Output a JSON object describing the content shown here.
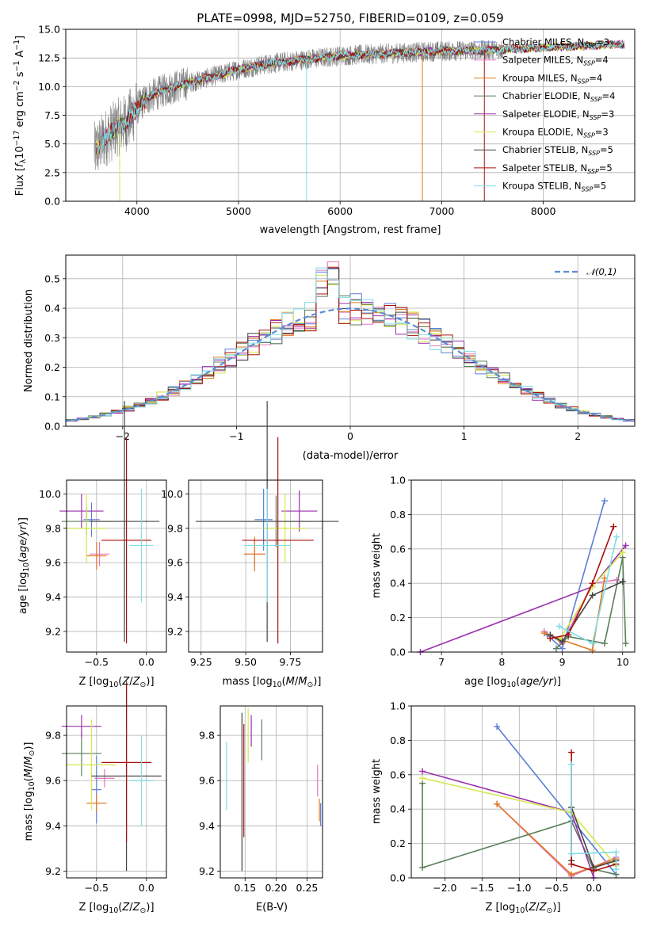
{
  "chart_data": [
    {
      "id": "spectrum",
      "type": "line",
      "title": "PLATE=0998, MJD=52750, FIBERID=0109, z=0.059",
      "xlabel": "wavelength [Angstrom, rest frame]",
      "ylabel": "Flux [f_λ 10^-17 erg cm^-2 s^-1 A^-1]",
      "xlim": [
        3300,
        8900
      ],
      "ylim": [
        0,
        15
      ],
      "xticks": [
        4000,
        5000,
        6000,
        7000,
        8000
      ],
      "yticks": [
        0.0,
        2.5,
        5.0,
        7.5,
        10.0,
        12.5,
        15.0
      ],
      "data_color": "#808080",
      "data_range": [
        3580,
        7600
      ],
      "model_range": [
        3600,
        8800
      ],
      "continuum": {
        "x": [
          3580,
          3700,
          3800,
          3900,
          4000,
          4100,
          4300,
          4500,
          4800,
          5000,
          5300,
          5600,
          6000,
          6500,
          7000,
          7500,
          8000,
          8500,
          8800
        ],
        "y": [
          4.3,
          5.6,
          6.4,
          6.9,
          8.1,
          9.0,
          9.8,
          10.3,
          11.0,
          11.5,
          12.0,
          12.3,
          12.7,
          12.9,
          13.1,
          13.2,
          13.4,
          13.6,
          13.7
        ]
      },
      "legend": [
        {
          "label": "Chabrier MILES, N_SSP=3",
          "color": "#5b7fd6"
        },
        {
          "label": "Salpeter MILES, N_SSP=4",
          "color": "#e377c2"
        },
        {
          "label": "Kroupa MILES, N_SSP=4",
          "color": "#e07b22"
        },
        {
          "label": "Chabrier ELODIE, N_SSP=4",
          "color": "#5a7f5a"
        },
        {
          "label": "Salpeter ELODIE, N_SSP=3",
          "color": "#9b2fae"
        },
        {
          "label": "Kroupa ELODIE, N_SSP=3",
          "color": "#d4e84f"
        },
        {
          "label": "Chabrier STELIB, N_SSP=5",
          "color": "#444444"
        },
        {
          "label": "Salpeter STELIB, N_SSP=5",
          "color": "#a81010"
        },
        {
          "label": "Kroupa STELIB, N_SSP=5",
          "color": "#7fdde6"
        }
      ]
    },
    {
      "id": "residuals",
      "type": "step",
      "xlabel": "(data-model)/error",
      "ylabel": "Normed distribution",
      "xlim": [
        -2.5,
        2.5
      ],
      "ylim": [
        0,
        0.58
      ],
      "xticks": [
        -2,
        -1,
        0,
        1,
        2
      ],
      "yticks": [
        0.0,
        0.1,
        0.2,
        0.3,
        0.4,
        0.5
      ],
      "bins": {
        "start": -2.5,
        "width": 0.1,
        "count": 50
      },
      "gaussian": {
        "label": "N(0,1)",
        "color": "#5b8dd6"
      }
    },
    {
      "id": "age-vs-Z",
      "type": "errorbar",
      "xlabel": "Z [log10(Z/Z⊙)]",
      "ylabel": "age [log10(age/yr)]",
      "xlim": [
        -0.8,
        0.2
      ],
      "ylim": [
        9.08,
        10.08
      ],
      "xticks": [
        -0.5,
        0.0
      ],
      "yticks": [
        9.2,
        9.4,
        9.6,
        9.8,
        10.0
      ],
      "points": [
        {
          "x": -0.55,
          "y": 9.85,
          "xe": 0.08,
          "ye": 0.1,
          "color": "#5b7fd6"
        },
        {
          "x": -0.47,
          "y": 9.65,
          "xe": 0.1,
          "ye": 0.07,
          "color": "#e377c2"
        },
        {
          "x": -0.5,
          "y": 9.64,
          "xe": 0.1,
          "ye": 0.08,
          "color": "#e07b22"
        },
        {
          "x": -0.6,
          "y": 9.84,
          "xe": 0.25,
          "ye": 0.08,
          "color": "#5a7f5a"
        },
        {
          "x": -0.65,
          "y": 9.9,
          "xe": 0.22,
          "ye": 0.1,
          "color": "#9b2fae"
        },
        {
          "x": -0.6,
          "y": 9.8,
          "xe": 0.2,
          "ye": 0.2,
          "color": "#d4e84f"
        },
        {
          "x": -0.22,
          "y": 9.84,
          "xe": 0.35,
          "ye": 0.7,
          "color": "#444444"
        },
        {
          "x": -0.2,
          "y": 9.73,
          "xe": 0.25,
          "ye": 0.6,
          "color": "#a81010"
        },
        {
          "x": -0.05,
          "y": 9.7,
          "xe": 0.12,
          "ye": 0.33,
          "color": "#7fdde6"
        }
      ]
    },
    {
      "id": "age-vs-mass",
      "type": "errorbar",
      "xlabel": "mass [log10(M/M⊙)]",
      "ylabel": "",
      "xlim": [
        9.18,
        9.93
      ],
      "ylim": [
        9.08,
        10.08
      ],
      "xticks": [
        9.25,
        9.5,
        9.75
      ],
      "yticks": [
        9.2,
        9.4,
        9.6,
        9.8,
        10.0
      ],
      "points": [
        {
          "x": 9.6,
          "y": 9.85,
          "xe": 0.05,
          "ye": 0.18,
          "color": "#5b7fd6"
        },
        {
          "x": 9.55,
          "y": 9.65,
          "xe": 0.06,
          "ye": 0.08,
          "color": "#e377c2"
        },
        {
          "x": 9.55,
          "y": 9.65,
          "xe": 0.06,
          "ye": 0.1,
          "color": "#e07b22"
        },
        {
          "x": 9.67,
          "y": 9.84,
          "xe": 0.2,
          "ye": 0.15,
          "color": "#5a7f5a"
        },
        {
          "x": 9.8,
          "y": 9.9,
          "xe": 0.1,
          "ye": 0.12,
          "color": "#9b2fae"
        },
        {
          "x": 9.72,
          "y": 9.8,
          "xe": 0.12,
          "ye": 0.2,
          "color": "#d4e84f"
        },
        {
          "x": 9.62,
          "y": 9.84,
          "xe": 0.4,
          "ye": 0.7,
          "color": "#444444"
        },
        {
          "x": 9.68,
          "y": 9.73,
          "xe": 0.2,
          "ye": 0.6,
          "color": "#a81010"
        },
        {
          "x": 9.62,
          "y": 9.7,
          "xe": 0.13,
          "ye": 0.33,
          "color": "#7fdde6"
        }
      ]
    },
    {
      "id": "weight-vs-age",
      "type": "line",
      "xlabel": "age [log10(age/yr)]",
      "ylabel": "mass weight",
      "xlim": [
        6.5,
        10.2
      ],
      "ylim": [
        0,
        1.0
      ],
      "xticks": [
        7,
        8,
        9,
        10
      ],
      "yticks": [
        0.0,
        0.2,
        0.4,
        0.6,
        0.8,
        1.0
      ],
      "series": [
        {
          "color": "#5b7fd6",
          "x": [
            8.75,
            9.0,
            9.7
          ],
          "y": [
            0.1,
            0.02,
            0.88
          ]
        },
        {
          "color": "#e377c2",
          "x": [
            8.7,
            9.0,
            9.5,
            9.9
          ],
          "y": [
            0.12,
            0.05,
            0.4,
            0.42
          ]
        },
        {
          "color": "#e07b22",
          "x": [
            8.7,
            9.0,
            9.5,
            9.7
          ],
          "y": [
            0.11,
            0.07,
            0.01,
            0.43
          ]
        },
        {
          "color": "#5a7f5a",
          "x": [
            8.9,
            9.1,
            9.7,
            10.0,
            10.05
          ],
          "y": [
            0.02,
            0.09,
            0.05,
            0.55,
            0.05
          ]
        },
        {
          "color": "#9b2fae",
          "x": [
            6.65,
            9.5,
            10.05
          ],
          "y": [
            0.0,
            0.38,
            0.62
          ]
        },
        {
          "color": "#d4e84f",
          "x": [
            8.95,
            9.5,
            10.0
          ],
          "y": [
            0.07,
            0.38,
            0.58
          ]
        },
        {
          "color": "#444444",
          "x": [
            8.8,
            9.0,
            9.5,
            10.0
          ],
          "y": [
            0.1,
            0.06,
            0.33,
            0.41
          ]
        },
        {
          "color": "#a81010",
          "x": [
            8.8,
            9.1,
            9.5,
            9.85
          ],
          "y": [
            0.08,
            0.1,
            0.4,
            0.73
          ]
        },
        {
          "color": "#7fdde6",
          "x": [
            8.95,
            9.5,
            9.9
          ],
          "y": [
            0.15,
            0.05,
            0.67
          ]
        }
      ]
    },
    {
      "id": "mass-vs-Z",
      "type": "errorbar",
      "xlabel": "Z [log10(Z/Z⊙)]",
      "ylabel": "mass [log10(M/M⊙)]",
      "xlim": [
        -0.8,
        0.2
      ],
      "ylim": [
        9.17,
        9.93
      ],
      "xticks": [
        -0.5,
        0.0
      ],
      "yticks": [
        9.2,
        9.4,
        9.6,
        9.8
      ],
      "points": [
        {
          "x": -0.5,
          "y": 9.56,
          "xe": 0.05,
          "ye": 0.15,
          "color": "#5b7fd6"
        },
        {
          "x": -0.42,
          "y": 9.61,
          "xe": 0.1,
          "ye": 0.04,
          "color": "#e377c2"
        },
        {
          "x": -0.5,
          "y": 9.5,
          "xe": 0.1,
          "ye": 0.04,
          "color": "#e07b22"
        },
        {
          "x": -0.65,
          "y": 9.72,
          "xe": 0.2,
          "ye": 0.1,
          "color": "#5a7f5a"
        },
        {
          "x": -0.65,
          "y": 9.84,
          "xe": 0.2,
          "ye": 0.05,
          "color": "#9b2fae"
        },
        {
          "x": -0.55,
          "y": 9.67,
          "xe": 0.25,
          "ye": 0.2,
          "color": "#d4e84f"
        },
        {
          "x": -0.2,
          "y": 9.62,
          "xe": 0.35,
          "ye": 0.42,
          "color": "#444444"
        },
        {
          "x": -0.2,
          "y": 9.68,
          "xe": 0.25,
          "ye": 0.35,
          "color": "#a81010"
        },
        {
          "x": -0.05,
          "y": 9.6,
          "xe": 0.12,
          "ye": 0.2,
          "color": "#7fdde6"
        }
      ]
    },
    {
      "id": "mass-vs-EBV",
      "type": "errorbar",
      "xlabel": "E(B-V)",
      "ylabel": "",
      "xlim": [
        0.11,
        0.275
      ],
      "ylim": [
        9.17,
        9.93
      ],
      "xticks": [
        0.15,
        0.2,
        0.25
      ],
      "yticks": [
        9.2,
        9.4,
        9.6,
        9.8
      ],
      "points": [
        {
          "x": 0.12,
          "y": 9.62,
          "xe": 0.0,
          "ye": 0.15,
          "color": "#7fdde6"
        },
        {
          "x": 0.145,
          "y": 9.55,
          "xe": 0.0,
          "ye": 0.35,
          "color": "#444444"
        },
        {
          "x": 0.148,
          "y": 9.6,
          "xe": 0.0,
          "ye": 0.25,
          "color": "#a81010"
        },
        {
          "x": 0.155,
          "y": 9.8,
          "xe": 0.0,
          "ye": 0.12,
          "color": "#d4e84f"
        },
        {
          "x": 0.16,
          "y": 9.82,
          "xe": 0.0,
          "ye": 0.07,
          "color": "#9b2fae"
        },
        {
          "x": 0.177,
          "y": 9.78,
          "xe": 0.0,
          "ye": 0.09,
          "color": "#5a7f5a"
        },
        {
          "x": 0.267,
          "y": 9.6,
          "xe": 0.0,
          "ye": 0.07,
          "color": "#e377c2"
        },
        {
          "x": 0.27,
          "y": 9.47,
          "xe": 0.0,
          "ye": 0.05,
          "color": "#e07b22"
        },
        {
          "x": 0.272,
          "y": 9.45,
          "xe": 0.0,
          "ye": 0.05,
          "color": "#5b7fd6"
        }
      ]
    },
    {
      "id": "weight-vs-Z",
      "type": "line",
      "xlabel": "Z [log10(Z/Z⊙)]",
      "ylabel": "mass weight",
      "xlim": [
        -2.45,
        0.55
      ],
      "ylim": [
        0,
        1.0
      ],
      "xticks": [
        -2.0,
        -1.5,
        -1.0,
        -0.5,
        0.0
      ],
      "yticks": [
        0.0,
        0.2,
        0.4,
        0.6,
        0.8,
        1.0
      ],
      "series": [
        {
          "color": "#5b7fd6",
          "x": [
            -1.3,
            0.3
          ],
          "y": [
            0.88,
            0.02
          ]
        },
        {
          "color": "#e377c2",
          "x": [
            -1.3,
            -0.3,
            0.3
          ],
          "y": [
            0.43,
            0.01,
            0.12
          ]
        },
        {
          "color": "#e07b22",
          "x": [
            -1.3,
            -0.3,
            0.3
          ],
          "y": [
            0.43,
            0.02,
            0.11
          ]
        },
        {
          "color": "#5a7f5a",
          "x": [
            -2.3,
            -2.3,
            -0.3,
            0.0,
            0.3
          ],
          "y": [
            0.55,
            0.06,
            0.33,
            0.05,
            0.02
          ]
        },
        {
          "color": "#9b2fae",
          "x": [
            -2.3,
            -0.3,
            0.0
          ],
          "y": [
            0.62,
            0.38,
            0.0
          ]
        },
        {
          "color": "#d4e84f",
          "x": [
            -2.3,
            -0.3,
            0.3
          ],
          "y": [
            0.58,
            0.38,
            0.07
          ]
        },
        {
          "color": "#444444",
          "x": [
            -0.3,
            -0.3,
            0.0,
            0.3
          ],
          "y": [
            0.1,
            0.41,
            0.06,
            0.1
          ]
        },
        {
          "color": "#a81010",
          "x": [
            -0.3,
            -0.3,
            0.0,
            0.3
          ],
          "y": [
            0.73,
            0.08,
            0.04,
            0.08
          ]
        },
        {
          "color": "#7fdde6",
          "x": [
            -0.3,
            -0.3,
            0.3,
            0.3
          ],
          "y": [
            0.66,
            0.14,
            0.15,
            0.05
          ]
        }
      ]
    }
  ]
}
